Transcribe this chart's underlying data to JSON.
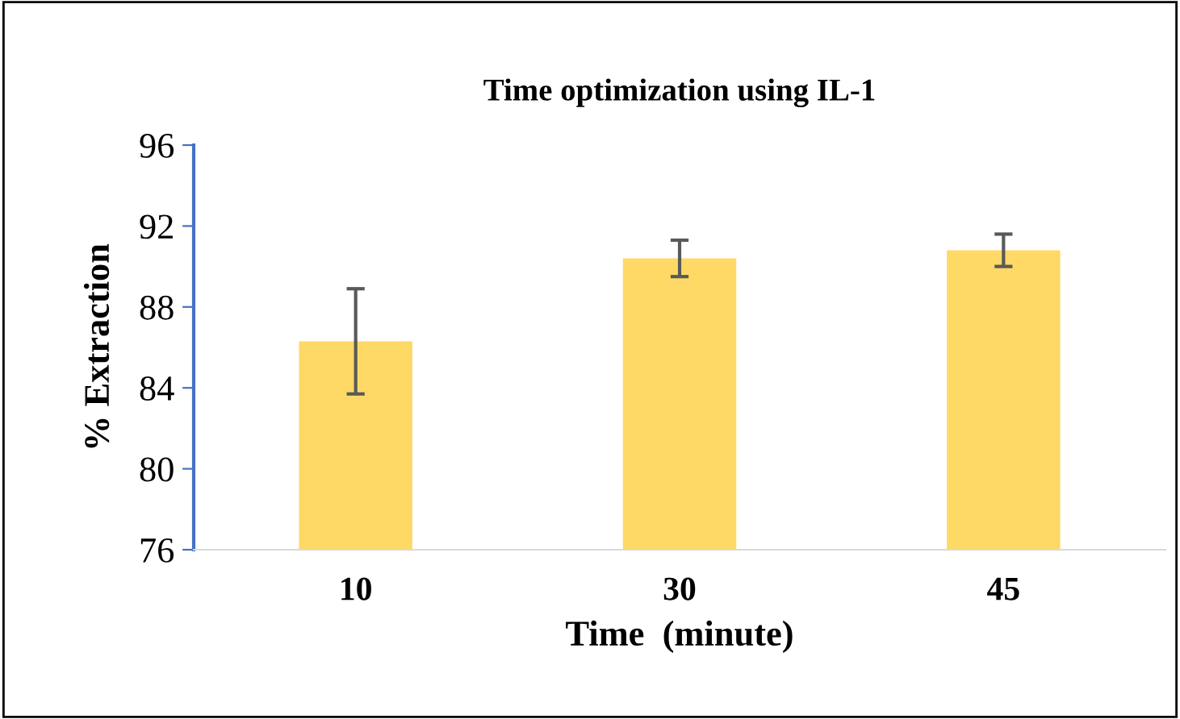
{
  "chart_data": {
    "type": "bar",
    "title": "Time optimization using IL-1",
    "xlabel": "Time  (minute)",
    "ylabel": "% Extraction",
    "categories": [
      "10",
      "30",
      "45"
    ],
    "values": [
      86.3,
      90.4,
      90.8
    ],
    "errors": [
      2.6,
      0.9,
      0.8
    ],
    "color": "#ffd966",
    "ylim": [
      76,
      96
    ],
    "yticks": [
      76,
      80,
      84,
      88,
      92,
      96
    ],
    "grid": false
  }
}
